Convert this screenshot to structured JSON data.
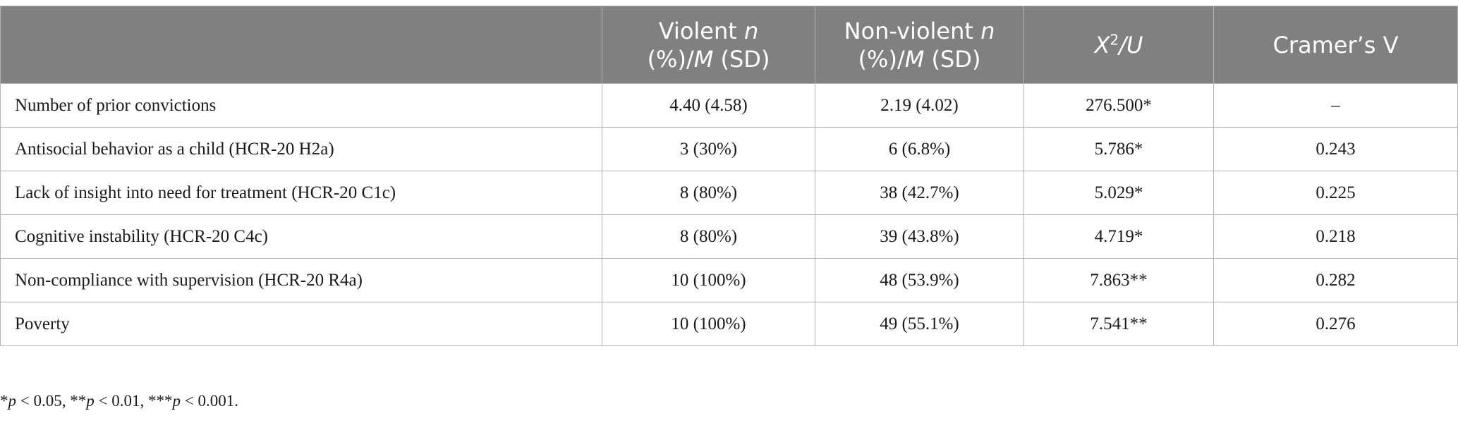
{
  "table": {
    "headers": [
      {
        "pre": "",
        "italic1": "",
        "mid": "",
        "italic2": "",
        "post": "",
        "sup": ""
      },
      {
        "pre": "Violent ",
        "italic1": "n",
        "mid": " (%)/",
        "italic2": "M",
        "post": " (SD)",
        "sup": ""
      },
      {
        "pre": "Non-violent ",
        "italic1": "n",
        "mid": " (%)/",
        "italic2": "M",
        "post": " (SD)",
        "sup": ""
      },
      {
        "pre": "",
        "italic1": "X",
        "mid": "",
        "italic2": "/U",
        "post": "",
        "sup": "2"
      },
      {
        "pre": "Cramer’s V",
        "italic1": "",
        "mid": "",
        "italic2": "",
        "post": "",
        "sup": ""
      }
    ],
    "rows": [
      [
        "Number of prior convictions",
        "4.40 (4.58)",
        "2.19 (4.02)",
        "276.500*",
        "–"
      ],
      [
        "Antisocial behavior as a child (HCR-20 H2a)",
        "3 (30%)",
        "6 (6.8%)",
        "5.786*",
        "0.243"
      ],
      [
        "Lack of insight into need for treatment (HCR-20 C1c)",
        "8 (80%)",
        "38 (42.7%)",
        "5.029*",
        "0.225"
      ],
      [
        "Cognitive instability (HCR-20 C4c)",
        "8 (80%)",
        "39 (43.8%)",
        "4.719*",
        "0.218"
      ],
      [
        "Non-compliance with supervision (HCR-20 R4a)",
        "10 (100%)",
        "48 (53.9%)",
        "7.863**",
        "0.282"
      ],
      [
        "Poverty",
        "10 (100%)",
        "49 (55.1%)",
        "7.541**",
        "0.276"
      ]
    ]
  },
  "footnote": {
    "parts": [
      {
        "text": "*",
        "italic": false
      },
      {
        "text": "p",
        "italic": true
      },
      {
        "text": " < 0.05, **",
        "italic": false
      },
      {
        "text": "p",
        "italic": true
      },
      {
        "text": " < 0.01, ***",
        "italic": false
      },
      {
        "text": "p",
        "italic": true
      },
      {
        "text": " < 0.001.",
        "italic": false
      }
    ]
  }
}
